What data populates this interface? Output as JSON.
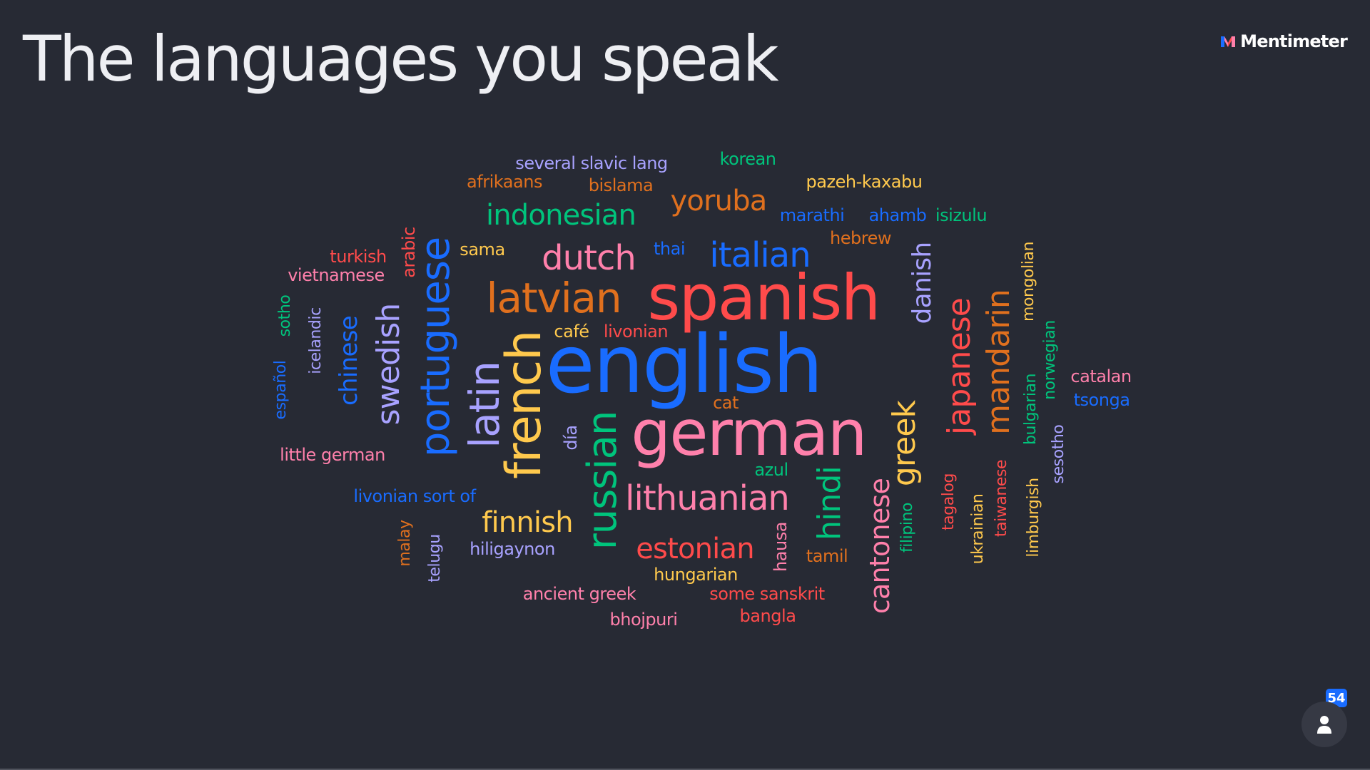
{
  "slide": {
    "title": "The languages you speak"
  },
  "brand": {
    "name": "Mentimeter",
    "icon": "mentimeter-logo-icon"
  },
  "participants": {
    "count": "54",
    "icon": "person-icon"
  },
  "colors": {
    "background": "#272A34",
    "title": "#EEEFF3",
    "badge": "#196CFF"
  },
  "word_cloud": {
    "words": [
      {
        "text": "english",
        "color": "#196CFF"
      },
      {
        "text": "german",
        "color": "#FF80AB"
      },
      {
        "text": "spanish",
        "color": "#FF4B4B"
      },
      {
        "text": "portuguese",
        "color": "#196CFF"
      },
      {
        "text": "french",
        "color": "#FFC94D"
      },
      {
        "text": "latvian",
        "color": "#E0701E"
      },
      {
        "text": "russian",
        "color": "#00C47C"
      },
      {
        "text": "latin",
        "color": "#A8A2FF"
      },
      {
        "text": "japanese",
        "color": "#FF4B4B"
      },
      {
        "text": "mandarin",
        "color": "#E0701E"
      },
      {
        "text": "greek",
        "color": "#FFC94D"
      },
      {
        "text": "cantonese",
        "color": "#FF80AB"
      },
      {
        "text": "dutch",
        "color": "#FF80AB"
      },
      {
        "text": "italian",
        "color": "#196CFF"
      },
      {
        "text": "lithuanian",
        "color": "#FF80AB"
      },
      {
        "text": "swedish",
        "color": "#A8A2FF"
      },
      {
        "text": "hindi",
        "color": "#00C47C"
      },
      {
        "text": "indonesian",
        "color": "#00C47C"
      },
      {
        "text": "estonian",
        "color": "#FF4B4B"
      },
      {
        "text": "danish",
        "color": "#A8A2FF"
      },
      {
        "text": "yoruba",
        "color": "#E0701E"
      },
      {
        "text": "finnish",
        "color": "#FFC94D"
      },
      {
        "text": "chinese",
        "color": "#196CFF"
      },
      {
        "text": "several slavic lang",
        "color": "#A8A2FF"
      },
      {
        "text": "korean",
        "color": "#00C47C"
      },
      {
        "text": "afrikaans",
        "color": "#E0701E"
      },
      {
        "text": "bislama",
        "color": "#E0701E"
      },
      {
        "text": "pazeh-kaxabu",
        "color": "#FFC94D"
      },
      {
        "text": "marathi",
        "color": "#196CFF"
      },
      {
        "text": "ahamb",
        "color": "#196CFF"
      },
      {
        "text": "isizulu",
        "color": "#00C47C"
      },
      {
        "text": "hebrew",
        "color": "#E0701E"
      },
      {
        "text": "turkish",
        "color": "#FF4B4B"
      },
      {
        "text": "vietnamese",
        "color": "#FF80AB"
      },
      {
        "text": "arabic",
        "color": "#FF4B4B"
      },
      {
        "text": "sama",
        "color": "#FFC94D"
      },
      {
        "text": "thai",
        "color": "#196CFF"
      },
      {
        "text": "sotho",
        "color": "#00C47C"
      },
      {
        "text": "icelandic",
        "color": "#A8A2FF"
      },
      {
        "text": "español",
        "color": "#196CFF"
      },
      {
        "text": "café",
        "color": "#FFC94D"
      },
      {
        "text": "livonian",
        "color": "#FF4B4B"
      },
      {
        "text": "cat",
        "color": "#E0701E"
      },
      {
        "text": "día",
        "color": "#A8A2FF"
      },
      {
        "text": "azul",
        "color": "#00C47C"
      },
      {
        "text": "little german",
        "color": "#FF80AB"
      },
      {
        "text": "livonian sort of",
        "color": "#196CFF"
      },
      {
        "text": "malay",
        "color": "#E0701E"
      },
      {
        "text": "telugu",
        "color": "#A8A2FF"
      },
      {
        "text": "hiligaynon",
        "color": "#A8A2FF"
      },
      {
        "text": "hungarian",
        "color": "#FFC94D"
      },
      {
        "text": "ancient greek",
        "color": "#FF80AB"
      },
      {
        "text": "some sanskrit",
        "color": "#FF4B4B"
      },
      {
        "text": "bhojpuri",
        "color": "#FF80AB"
      },
      {
        "text": "bangla",
        "color": "#FF4B4B"
      },
      {
        "text": "hausa",
        "color": "#FF80AB"
      },
      {
        "text": "tamil",
        "color": "#E0701E"
      },
      {
        "text": "filipino",
        "color": "#00C47C"
      },
      {
        "text": "tagalog",
        "color": "#FF4B4B"
      },
      {
        "text": "ukrainian",
        "color": "#FFC94D"
      },
      {
        "text": "taiwanese",
        "color": "#FF4B4B"
      },
      {
        "text": "limburgish",
        "color": "#FFC94D"
      },
      {
        "text": "sesotho",
        "color": "#A8A2FF"
      },
      {
        "text": "bulgarian",
        "color": "#00C47C"
      },
      {
        "text": "norwegian",
        "color": "#00C47C"
      },
      {
        "text": "mongolian",
        "color": "#FFC94D"
      },
      {
        "text": "catalan",
        "color": "#FF80AB"
      },
      {
        "text": "tsonga",
        "color": "#196CFF"
      }
    ]
  }
}
